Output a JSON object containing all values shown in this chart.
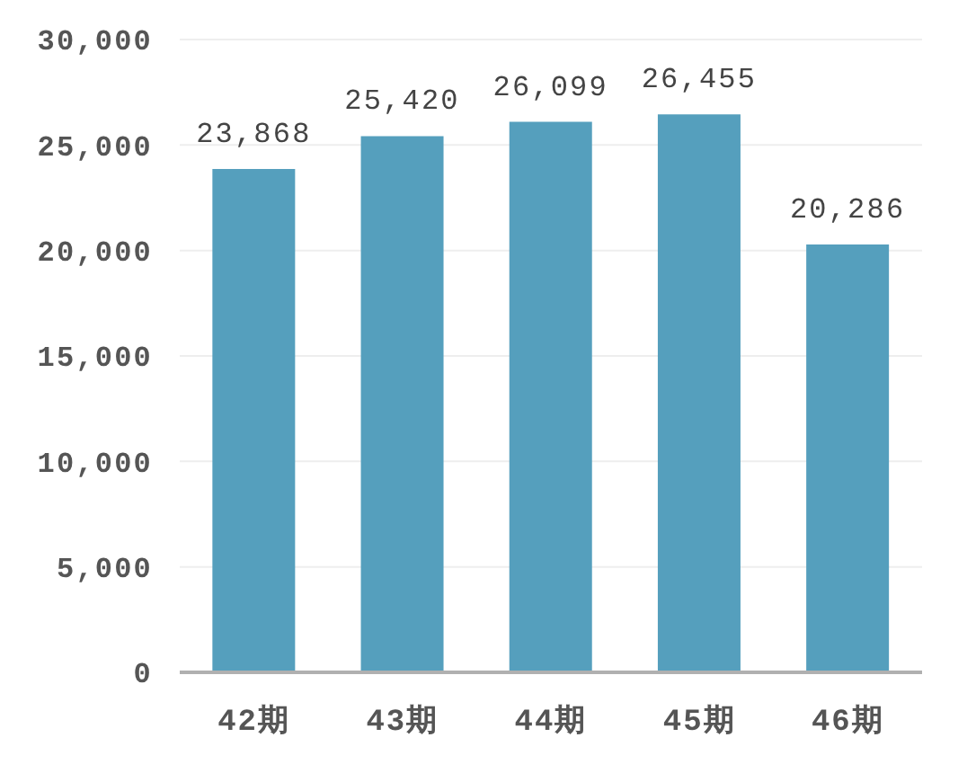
{
  "chart_data": {
    "type": "bar",
    "categories": [
      "42期",
      "43期",
      "44期",
      "45期",
      "46期"
    ],
    "values": [
      23868,
      25420,
      26099,
      26455,
      20286
    ],
    "value_labels": [
      "23,868",
      "25,420",
      "26,099",
      "26,455",
      "20,286"
    ],
    "color": "#559fbd",
    "ylim": [
      0,
      30000
    ],
    "yticks": [
      0,
      {
        "value": 5000,
        "label": "5,000"
      },
      {
        "value": 10000,
        "label": "10,000"
      },
      {
        "value": 15000,
        "label": "15,000"
      },
      {
        "value": 20000,
        "label": "20,000"
      },
      {
        "value": 25000,
        "label": "25,000"
      },
      {
        "value": 30000,
        "label": "30,000"
      }
    ],
    "grid": "y"
  }
}
